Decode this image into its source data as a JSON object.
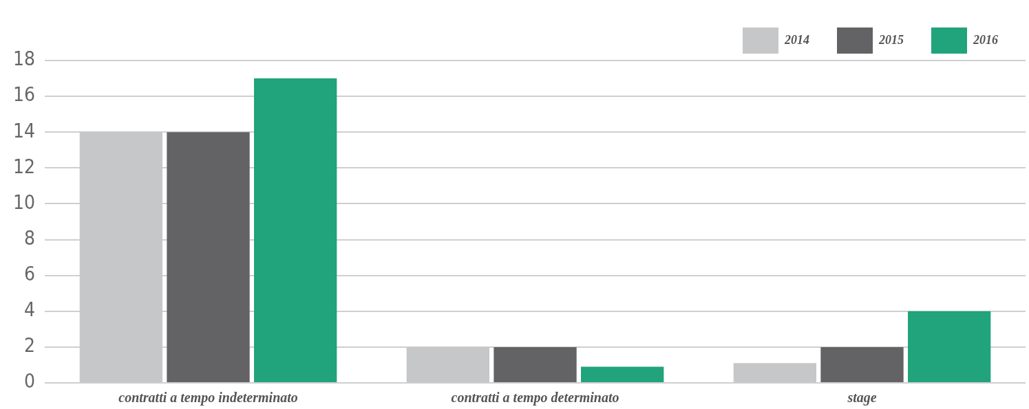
{
  "chart_data": {
    "type": "bar",
    "categories": [
      "contratti a tempo indeterminato",
      "contratti a tempo determinato",
      "stage"
    ],
    "series": [
      {
        "name": "2014",
        "color": "#c6c7c8",
        "values": [
          14,
          2,
          1.1
        ]
      },
      {
        "name": "2015",
        "color": "#636365",
        "values": [
          14,
          2,
          2
        ]
      },
      {
        "name": "2016",
        "color": "#21a37b",
        "values": [
          17,
          0.9,
          4
        ]
      }
    ],
    "ylim": [
      0,
      18
    ],
    "yticks": [
      0,
      2,
      4,
      6,
      8,
      10,
      12,
      14,
      16,
      18
    ],
    "grid": "y",
    "legend": "top right"
  }
}
